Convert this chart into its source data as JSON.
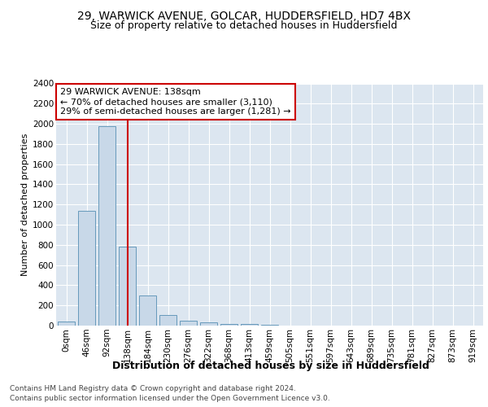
{
  "title1": "29, WARWICK AVENUE, GOLCAR, HUDDERSFIELD, HD7 4BX",
  "title2": "Size of property relative to detached houses in Huddersfield",
  "xlabel": "Distribution of detached houses by size in Huddersfield",
  "ylabel": "Number of detached properties",
  "footer1": "Contains HM Land Registry data © Crown copyright and database right 2024.",
  "footer2": "Contains public sector information licensed under the Open Government Licence v3.0.",
  "bar_labels": [
    "0sqm",
    "46sqm",
    "92sqm",
    "138sqm",
    "184sqm",
    "230sqm",
    "276sqm",
    "322sqm",
    "368sqm",
    "413sqm",
    "459sqm",
    "505sqm",
    "551sqm",
    "597sqm",
    "643sqm",
    "689sqm",
    "735sqm",
    "781sqm",
    "827sqm",
    "873sqm",
    "919sqm"
  ],
  "bar_values": [
    40,
    1140,
    1980,
    780,
    300,
    105,
    45,
    35,
    20,
    15,
    5,
    0,
    0,
    0,
    0,
    0,
    0,
    0,
    0,
    0,
    0
  ],
  "bar_color": "#c8d8e8",
  "bar_edge_color": "#6699bb",
  "property_size_label": "138sqm",
  "red_line_color": "#cc0000",
  "annotation_text1": "29 WARWICK AVENUE: 138sqm",
  "annotation_text2": "← 70% of detached houses are smaller (3,110)",
  "annotation_text3": "29% of semi-detached houses are larger (1,281) →",
  "annotation_box_color": "#cc0000",
  "ylim": [
    0,
    2400
  ],
  "yticks": [
    0,
    200,
    400,
    600,
    800,
    1000,
    1200,
    1400,
    1600,
    1800,
    2000,
    2200,
    2400
  ],
  "plot_bg_color": "#dce6f0",
  "fig_bg_color": "#ffffff",
  "grid_color": "#ffffff",
  "title_fontsize": 10,
  "subtitle_fontsize": 9,
  "xlabel_fontsize": 9,
  "ylabel_fontsize": 8,
  "footer_fontsize": 6.5,
  "tick_fontsize": 7.5,
  "annot_fontsize": 8
}
